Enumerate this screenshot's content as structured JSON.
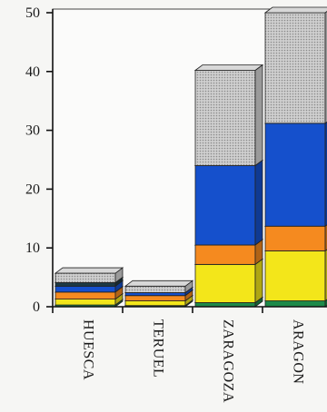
{
  "chart_data": {
    "type": "bar",
    "stacked": true,
    "style": "3d",
    "categories": [
      "HUESCA",
      "TERUEL",
      "ZARAGOZA",
      "ARAGON"
    ],
    "y_ticks": [
      "0",
      "10",
      "20",
      "30",
      "40",
      "50"
    ],
    "ylim": [
      0,
      50
    ],
    "grid": false,
    "series": [
      {
        "color": "#1e8a4a",
        "values": [
          0.3,
          0.2,
          0.7,
          1.0
        ]
      },
      {
        "color": "#f3e61a",
        "values": [
          1.0,
          0.8,
          6.5,
          8.5
        ]
      },
      {
        "color": "#f58a1f",
        "values": [
          1.2,
          0.9,
          3.3,
          4.2
        ]
      },
      {
        "color": "#1550cc",
        "values": [
          1.0,
          0.5,
          13.5,
          17.5
        ]
      },
      {
        "color": "#1d3a44",
        "values": [
          0.6,
          0.0,
          0.0,
          0.0
        ]
      },
      {
        "color": "#c9c9c9",
        "values": [
          1.6,
          1.1,
          16.2,
          18.8
        ]
      }
    ]
  }
}
